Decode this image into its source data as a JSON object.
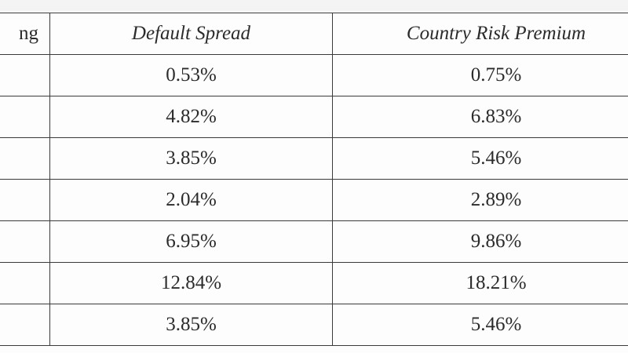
{
  "table": {
    "headers": [
      "ng",
      "Default Spread",
      "Country Risk Premium"
    ],
    "rows": [
      {
        "rating": "",
        "default_spread": "0.53%",
        "crp": "0.75%"
      },
      {
        "rating": "",
        "default_spread": "4.82%",
        "crp": "6.83%"
      },
      {
        "rating": "",
        "default_spread": "3.85%",
        "crp": "5.46%"
      },
      {
        "rating": "",
        "default_spread": "2.04%",
        "crp": "2.89%"
      },
      {
        "rating": "",
        "default_spread": "6.95%",
        "crp": "9.86%"
      },
      {
        "rating": "",
        "default_spread": "12.84%",
        "crp": "18.21%"
      },
      {
        "rating": "",
        "default_spread": "3.85%",
        "crp": "5.46%"
      }
    ]
  }
}
